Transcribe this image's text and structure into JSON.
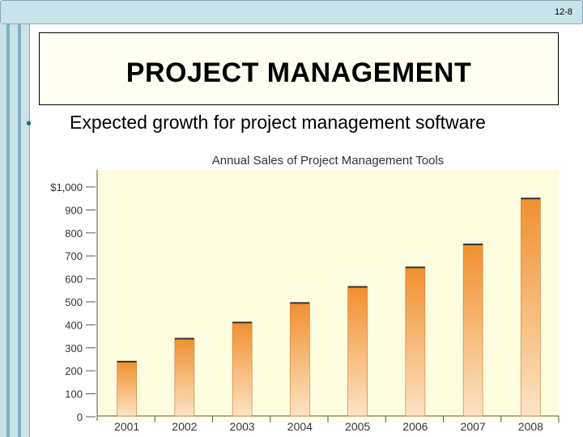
{
  "slide": {
    "number": "12-8",
    "title": "PROJECT MANAGEMENT",
    "bullet": "Expected growth for project management software"
  },
  "colors": {
    "bar_top": "#f0902e",
    "bar_bottom": "#fde3c4",
    "plot_background": "#fefddf",
    "band": "#c9e3e8"
  },
  "chart_data": {
    "type": "bar",
    "title": "Annual Sales of Project Management Tools",
    "categories": [
      "2001",
      "2002",
      "2003",
      "2004",
      "2005",
      "2006",
      "2007",
      "2008"
    ],
    "values": [
      240,
      340,
      410,
      495,
      565,
      650,
      750,
      950
    ],
    "ylim": [
      0,
      1000
    ],
    "yticks": [
      0,
      100,
      200,
      300,
      400,
      500,
      600,
      700,
      800,
      900,
      1000
    ],
    "ytick_labels": [
      "0",
      "100",
      "200",
      "300",
      "400",
      "500",
      "600",
      "700",
      "800",
      "900",
      "$1,000"
    ],
    "grid": false,
    "legend": "none"
  }
}
